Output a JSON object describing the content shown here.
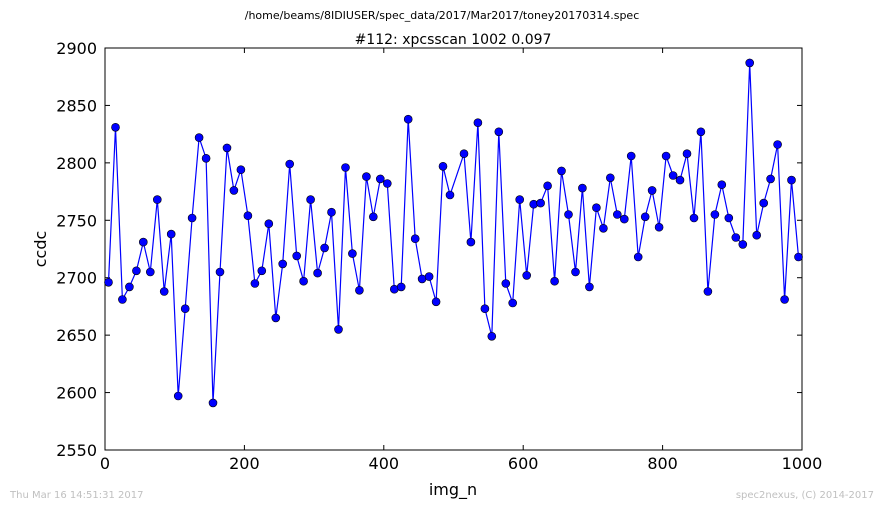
{
  "chart_data": {
    "type": "line",
    "suptitle": "/home/beams/8IDIUSER/spec_data/2017/Mar2017/toney20170314.spec",
    "title": "#112: xpcsscan 1002 0.097",
    "xlabel": "img_n",
    "ylabel": "ccdc",
    "xlim": [
      0,
      1000
    ],
    "ylim": [
      2550,
      2900
    ],
    "xticks": [
      0,
      200,
      400,
      600,
      800,
      1000
    ],
    "yticks": [
      2550,
      2600,
      2650,
      2700,
      2750,
      2800,
      2850,
      2900
    ],
    "grid": false,
    "line_color": "#0000ff",
    "marker_color": "#0000ff",
    "marker": "circle",
    "series": [
      {
        "x": [
          5,
          15,
          25,
          35,
          45,
          55,
          65,
          75,
          85,
          95,
          105,
          115,
          125,
          135,
          145,
          155,
          165,
          175,
          185,
          195,
          205,
          215,
          225,
          235,
          245,
          255,
          265,
          275,
          285,
          295,
          305,
          315,
          325,
          335,
          345,
          355,
          365,
          375,
          385,
          395,
          405,
          415,
          425,
          435,
          445,
          455,
          465,
          475,
          485,
          495,
          515,
          525,
          535,
          545,
          555,
          565,
          575,
          585,
          595,
          605,
          615,
          625,
          635,
          645,
          655,
          665,
          675,
          685,
          695,
          705,
          715,
          725,
          735,
          745,
          755,
          765,
          775,
          785,
          795,
          805,
          815,
          825,
          835,
          845,
          855,
          865,
          875,
          885,
          895,
          905,
          915,
          925,
          935,
          945,
          955,
          965,
          975,
          985,
          995
        ],
        "y": [
          2696,
          2831,
          2681,
          2692,
          2706,
          2731,
          2705,
          2768,
          2688,
          2738,
          2597,
          2673,
          2752,
          2822,
          2804,
          2591,
          2705,
          2813,
          2776,
          2794,
          2754,
          2695,
          2706,
          2747,
          2665,
          2712,
          2799,
          2719,
          2697,
          2768,
          2704,
          2726,
          2757,
          2655,
          2796,
          2721,
          2689,
          2788,
          2753,
          2786,
          2782,
          2690,
          2692,
          2838,
          2734,
          2699,
          2701,
          2679,
          2797,
          2772,
          2808,
          2731,
          2835,
          2673,
          2649,
          2827,
          2695,
          2678,
          2768,
          2702,
          2764,
          2765,
          2780,
          2697,
          2793,
          2755,
          2705,
          2778,
          2692,
          2761,
          2743,
          2787,
          2755,
          2751,
          2806,
          2718,
          2753,
          2776,
          2744,
          2806,
          2789,
          2785,
          2808,
          2752,
          2827,
          2688,
          2755,
          2781,
          2752,
          2735,
          2729,
          2887,
          2737,
          2765,
          2786,
          2816,
          2681,
          2785,
          2718
        ]
      }
    ]
  },
  "footer": {
    "timestamp": "Thu Mar 16 14:51:31 2017",
    "credit": "spec2nexus, (C) 2014-2017"
  }
}
